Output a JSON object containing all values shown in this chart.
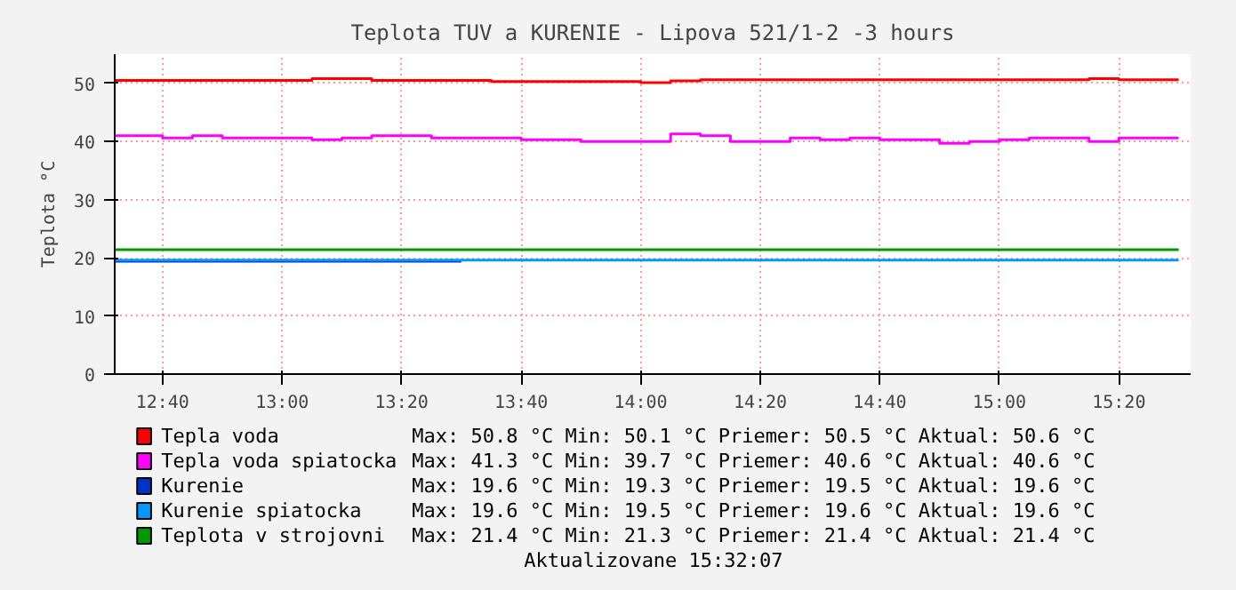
{
  "chart_data": {
    "type": "step",
    "title": "Teplota TUV a KURENIE - Lipova 521/1-2 -3 hours",
    "ylabel": "Teplota °C",
    "xlim": [
      12.5333,
      15.5333
    ],
    "ylim": [
      0,
      55
    ],
    "xticks": [
      {
        "value": 12.6667,
        "label": "12:40"
      },
      {
        "value": 13.0,
        "label": "13:00"
      },
      {
        "value": 13.3333,
        "label": "13:20"
      },
      {
        "value": 13.6667,
        "label": "13:40"
      },
      {
        "value": 14.0,
        "label": "14:00"
      },
      {
        "value": 14.3333,
        "label": "14:20"
      },
      {
        "value": 14.6667,
        "label": "14:40"
      },
      {
        "value": 15.0,
        "label": "15:00"
      },
      {
        "value": 15.3333,
        "label": "15:20"
      }
    ],
    "yticks": [
      0,
      10,
      20,
      30,
      40,
      50
    ],
    "grid": true,
    "legend": "bottom",
    "series": [
      {
        "name": "Tepla voda",
        "color": "#ff0000",
        "x": [
          12.5333,
          13.0833,
          13.25,
          13.5833,
          14.0,
          14.0833,
          14.1667,
          15.25,
          15.3333,
          15.5
        ],
        "values": [
          50.5,
          50.8,
          50.5,
          50.3,
          50.1,
          50.4,
          50.6,
          50.8,
          50.6,
          50.6
        ]
      },
      {
        "name": "Tepla voda spiatocka",
        "color": "#ff00ff",
        "x": [
          12.5333,
          12.6667,
          12.75,
          12.8333,
          13.0833,
          13.1667,
          13.25,
          13.4167,
          13.6667,
          13.8333,
          14.0833,
          14.1667,
          14.25,
          14.4167,
          14.5,
          14.5833,
          14.6667,
          14.8333,
          14.9167,
          15.0,
          15.0833,
          15.25,
          15.3333,
          15.5
        ],
        "values": [
          41.0,
          40.6,
          41.0,
          40.6,
          40.3,
          40.6,
          41.0,
          40.6,
          40.3,
          40.0,
          41.3,
          41.0,
          40.0,
          40.6,
          40.3,
          40.6,
          40.3,
          39.7,
          40.0,
          40.3,
          40.6,
          40.0,
          40.6,
          40.6
        ]
      },
      {
        "name": "Kurenie",
        "color": "#0033cc",
        "x": [
          12.5333,
          13.5
        ],
        "values": [
          19.4,
          19.4
        ]
      },
      {
        "name": "Kurenie spiatocka",
        "color": "#0099ff",
        "x": [
          12.5333,
          15.5
        ],
        "values": [
          19.6,
          19.6
        ]
      },
      {
        "name": "Teplota v strojovni",
        "color": "#009900",
        "x": [
          12.5333,
          15.5
        ],
        "values": [
          21.4,
          21.4
        ]
      }
    ],
    "annotations": [
      "Max: 50.8 °C   Min: 50.1 °C   Priemer: 50.5 °C  Aktual: 50.6 °C",
      "Max: 41.3 °C   Min: 39.7 °C   Priemer: 40.6 °C  Aktual: 40.6 °C",
      "Max: 19.6 °C   Min: 19.3 °C   Priemer: 19.5 °C  Aktual: 19.6 °C",
      "Max: 19.6 °C   Min: 19.5 °C   Priemer: 19.6 °C  Aktual: 19.6 °C",
      "Max: 21.4 °C   Min: 21.3 °C   Priemer: 21.4 °C  Aktual: 21.4 °C",
      "Aktualizovane 15:32:07"
    ]
  }
}
